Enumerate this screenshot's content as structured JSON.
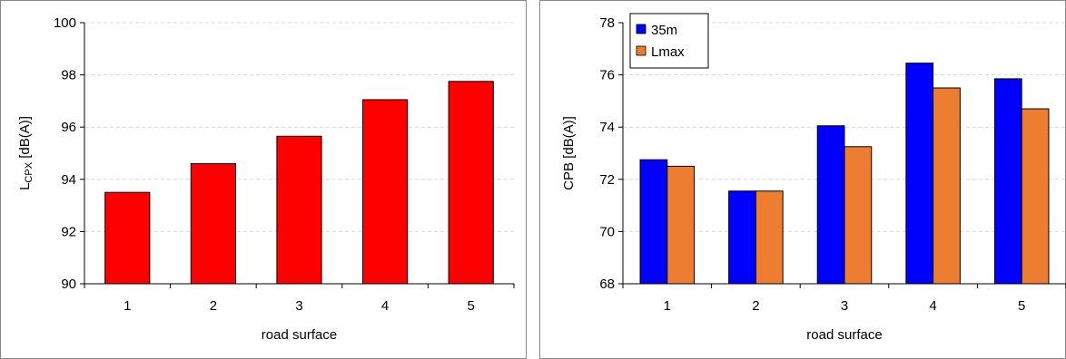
{
  "chart_data": [
    {
      "type": "bar",
      "title": "",
      "xlabel": "road surface",
      "ylabel": {
        "main": "L",
        "subscript": "CPX",
        "suffix": " [dB(A)]"
      },
      "categories": [
        "1",
        "2",
        "3",
        "4",
        "5"
      ],
      "series": [
        {
          "values": [
            93.5,
            94.6,
            95.65,
            97.05,
            97.75
          ],
          "color": "#ff0000"
        }
      ],
      "ylim": [
        90,
        100
      ],
      "yticks": [
        "90",
        "92",
        "94",
        "96",
        "98",
        "100"
      ],
      "grid": true,
      "legend": "none"
    },
    {
      "type": "bar",
      "title": "",
      "xlabel": "road surface",
      "ylabel": "CPB  [dB(A)]",
      "categories": [
        "1",
        "2",
        "3",
        "4",
        "5"
      ],
      "series": [
        {
          "name": "35m",
          "values": [
            72.75,
            71.55,
            74.05,
            76.45,
            75.85
          ],
          "color": "#0000ff"
        },
        {
          "name": "Lmax",
          "values": [
            72.5,
            71.55,
            73.25,
            75.5,
            74.7
          ],
          "color": "#ed7d31"
        }
      ],
      "ylim": [
        68,
        78
      ],
      "yticks": [
        "68",
        "70",
        "72",
        "74",
        "76",
        "78"
      ],
      "grid": true,
      "legend": "top-left"
    }
  ]
}
